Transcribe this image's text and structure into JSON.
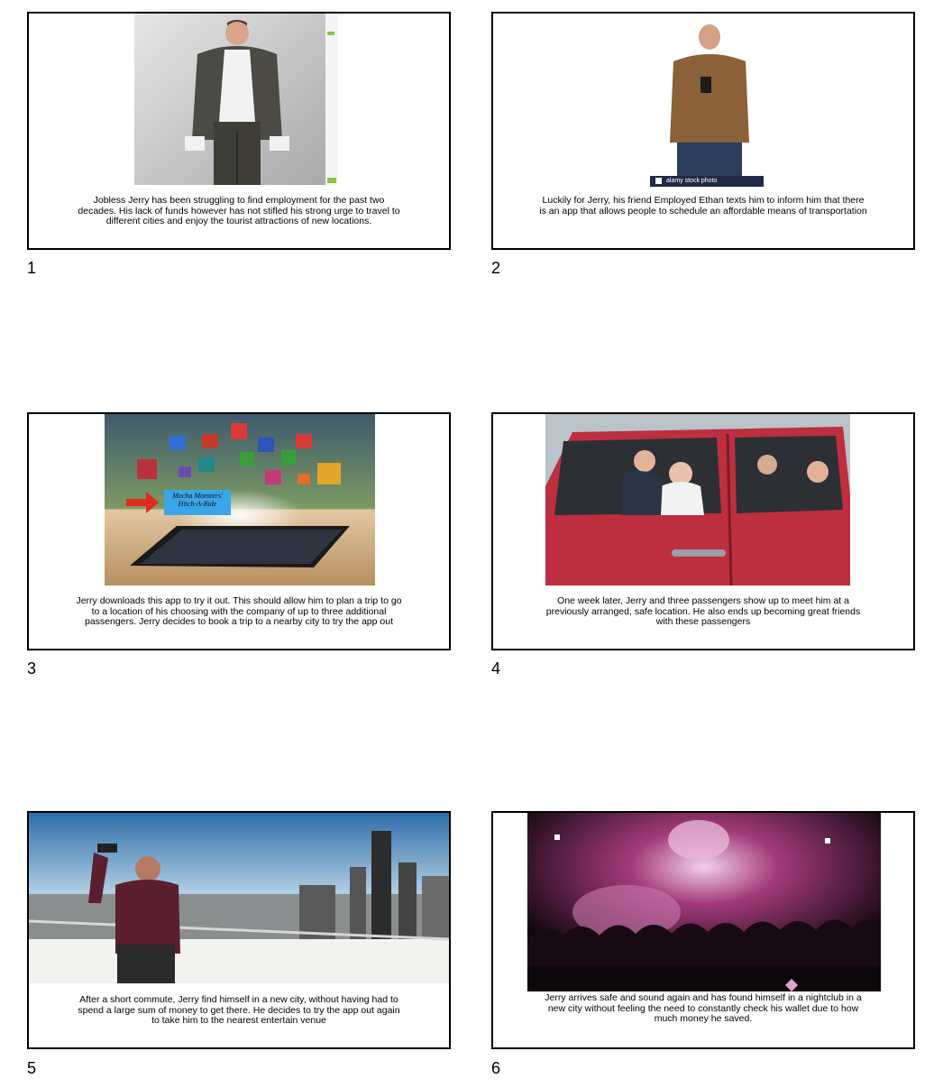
{
  "slides": [
    {
      "number": "1",
      "caption": "Jobless Jerry has been struggling to find employment for the past two decades. His lack of funds however has not stifled his strong urge to travel to different cities and enjoy the tourist attractions of new locations.",
      "image": "man-showing-empty-pockets-photo"
    },
    {
      "number": "2",
      "caption": "Luckily for Jerry, his friend Employed Ethan texts him to inform him that there is an app that allows people to schedule an affordable means of transportation",
      "image": "man-reading-phone-photo",
      "image_watermark": "alamy stock photo"
    },
    {
      "number": "3",
      "caption": "Jerry downloads this app to try it out. This should allow him to plan a trip to go to a location of his choosing with the company of up to three additional passengers. Jerry decides to book a trip to a nearby city to try the app out",
      "image": "smartphone-app-icons-photo",
      "image_label": "Mocha Monsters' Hitch-A-Ride"
    },
    {
      "number": "4",
      "caption": "One week later, Jerry and three passengers show up to meet him at a previously arranged, safe location. He also ends up becoming great friends with these passengers",
      "image": "four-people-in-red-car-photo"
    },
    {
      "number": "5",
      "caption": "After a short commute, Jerry find himself in a new city, without having had to spend a large sum of money to get there. He decides to try the app out again to take him to the nearest entertain venue",
      "image": "man-selfie-city-skyline-photo"
    },
    {
      "number": "6",
      "caption": "Jerry arrives safe and sound again and has found himself in a nightclub in a new city without feeling the need to constantly check his wallet due to how much money he saved.",
      "image": "nightclub-crowd-photo"
    }
  ]
}
